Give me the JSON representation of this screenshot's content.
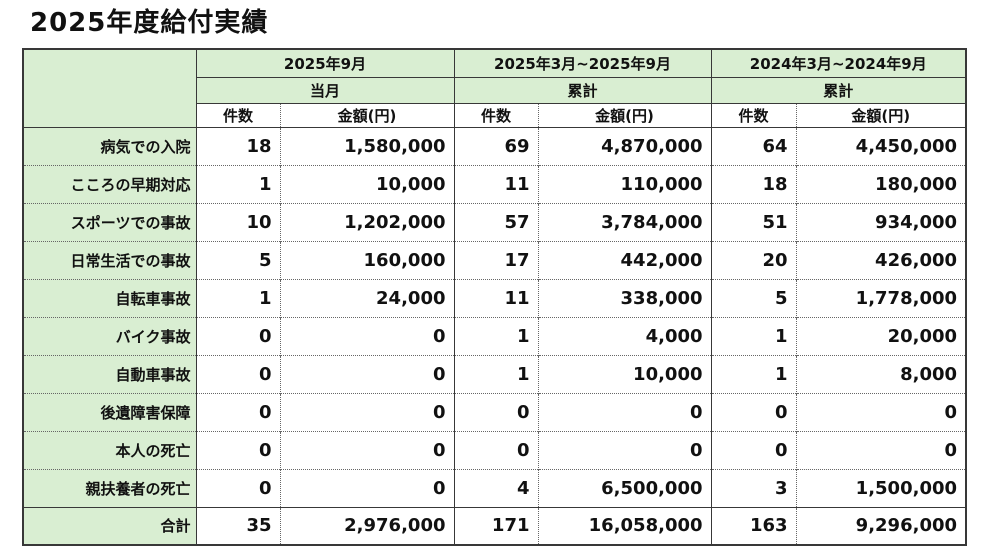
{
  "title": "2025年度給付実績",
  "colors": {
    "header_green": "#d9eed2",
    "border_dark": "#383838",
    "text": "#111111",
    "background": "#ffffff"
  },
  "table": {
    "col_groups": [
      {
        "period": "2025年9月",
        "scope": "当月"
      },
      {
        "period": "2025年3月~2025年9月",
        "scope": "累計"
      },
      {
        "period": "2024年3月~2024年9月",
        "scope": "累計"
      }
    ],
    "sub_headers": {
      "count": "件数",
      "amount": "金額(円)"
    },
    "rows": [
      {
        "label": "病気での入院",
        "values": [
          "18",
          "1,580,000",
          "69",
          "4,870,000",
          "64",
          "4,450,000"
        ]
      },
      {
        "label": "こころの早期対応",
        "values": [
          "1",
          "10,000",
          "11",
          "110,000",
          "18",
          "180,000"
        ]
      },
      {
        "label": "スポーツでの事故",
        "values": [
          "10",
          "1,202,000",
          "57",
          "3,784,000",
          "51",
          "934,000"
        ]
      },
      {
        "label": "日常生活での事故",
        "values": [
          "5",
          "160,000",
          "17",
          "442,000",
          "20",
          "426,000"
        ]
      },
      {
        "label": "自転車事故",
        "values": [
          "1",
          "24,000",
          "11",
          "338,000",
          "5",
          "1,778,000"
        ]
      },
      {
        "label": "バイク事故",
        "values": [
          "0",
          "0",
          "1",
          "4,000",
          "1",
          "20,000"
        ]
      },
      {
        "label": "自動車事故",
        "values": [
          "0",
          "0",
          "1",
          "10,000",
          "1",
          "8,000"
        ]
      },
      {
        "label": "後遺障害保障",
        "values": [
          "0",
          "0",
          "0",
          "0",
          "0",
          "0"
        ]
      },
      {
        "label": "本人の死亡",
        "values": [
          "0",
          "0",
          "0",
          "0",
          "0",
          "0"
        ]
      },
      {
        "label": "親扶養者の死亡",
        "values": [
          "0",
          "0",
          "4",
          "6,500,000",
          "3",
          "1,500,000"
        ]
      }
    ],
    "total_row": {
      "label": "合計",
      "values": [
        "35",
        "2,976,000",
        "171",
        "16,058,000",
        "163",
        "9,296,000"
      ]
    }
  }
}
